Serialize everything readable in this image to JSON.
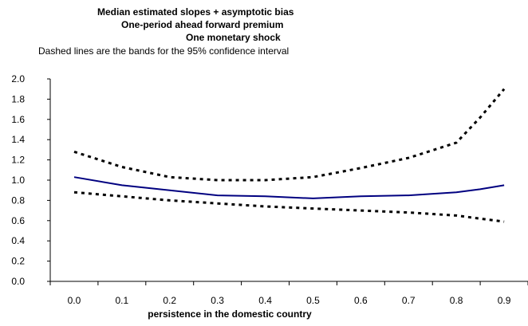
{
  "chart_data": {
    "type": "line",
    "title": [
      "Median estimated slopes + asymptotic bias",
      "One-period ahead forward premium",
      "One monetary shock"
    ],
    "subtitle": "Dashed lines are the bands for the 95% confidence interval",
    "xlabel": "persistence in the domestic country",
    "ylabel": "",
    "x": [
      0.0,
      0.1,
      0.2,
      0.3,
      0.4,
      0.5,
      0.6,
      0.7,
      0.8,
      0.85,
      0.9
    ],
    "x_tick_labels": [
      "0.0",
      "0.1",
      "0.2",
      "0.3",
      "0.4",
      "0.5",
      "0.6",
      "0.7",
      "0.8",
      "0.9"
    ],
    "y_tick_labels": [
      "0.0",
      "0.2",
      "0.4",
      "0.6",
      "0.8",
      "1.0",
      "1.2",
      "1.4",
      "1.6",
      "1.8",
      "2.0"
    ],
    "xlim": [
      -0.05,
      0.95
    ],
    "ylim": [
      0,
      2.0
    ],
    "series": [
      {
        "name": "",
        "style": "solid",
        "color": "#000080",
        "values": [
          1.03,
          0.95,
          0.9,
          0.85,
          0.84,
          0.82,
          0.84,
          0.85,
          0.88,
          0.91,
          0.95
        ]
      },
      {
        "name": "",
        "style": "dashed",
        "color": "#000000",
        "values": [
          1.28,
          1.13,
          1.03,
          1.0,
          1.0,
          1.03,
          1.12,
          1.22,
          1.37,
          1.62,
          1.9
        ]
      },
      {
        "name": "",
        "style": "dashed",
        "color": "#000000",
        "values": [
          0.88,
          0.84,
          0.8,
          0.77,
          0.74,
          0.72,
          0.7,
          0.68,
          0.65,
          0.62,
          0.59
        ]
      }
    ],
    "grid": false,
    "legend": "none"
  }
}
